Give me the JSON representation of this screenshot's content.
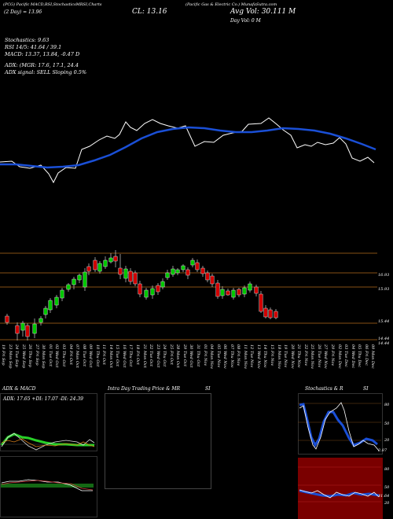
{
  "header": {
    "line1_left": "(PCG) Pacific MACD,RSI,StochasticsMRSI,Charts",
    "line1_right": "(Pacific Gas & Electric Co.) MunafaSutra.com",
    "day": "(2 Day) = 13.96",
    "cl": "CL: 13.16",
    "avg_vol": "Avg Vol: 30.111 M",
    "day_vol": "Day Vol: 0   M"
  },
  "indicators": {
    "stochastics": "Stochastics: 9.63",
    "rsi": "RSI 14/5: 41.64 / 39.1",
    "macd": "MACD: 13.37, 13.84, -0.47 D",
    "adx": "ADX:                                   (MGR: 17.6, 17.1, 24.4",
    "adx_signal": "ADX signal: SELL Sloping 0.5%"
  },
  "price_labels": [
    "16.93",
    "15.93",
    "15.44",
    "14.44",
    "14.44"
  ],
  "date_labels": [
    "19 Fri Sep",
    "23 Mon Sep",
    "24 Tue Sep",
    "25 Wed Sep",
    "26 Thu Sep",
    "27 Fri Sep",
    "30 Mon Sep",
    "01 Tue Oct",
    "02 Wed Oct",
    "03 Thu Oct",
    "04 Fri Oct",
    "07 Mon Oct",
    "08 Tue Oct",
    "09 Wed Oct",
    "10 Thu Oct",
    "11 Fri Oct",
    "14 Mon Oct",
    "15 Tue Oct",
    "16 Wed Oct",
    "17 Thu Oct",
    "18 Fri Oct",
    "21 Mon Oct",
    "22 Tue Oct",
    "23 Wed Oct",
    "24 Thu Oct",
    "25 Fri Oct",
    "28 Mon Oct",
    "29 Tue Oct",
    "30 Wed Oct",
    "31 Thu Oct",
    "01 Fri Nov",
    "04 Mon Nov",
    "05 Tue Nov",
    "06 Wed Nov",
    "07 Thu Nov",
    "08 Fri Nov",
    "11 Mon Nov",
    "12 Tue Nov",
    "13 Wed Nov",
    "14 Thu Nov",
    "15 Fri Nov",
    "18 Mon Nov",
    "19 Tue Nov",
    "20 Wed Nov",
    "21 Thu Nov",
    "22 Fri Nov",
    "25 Mon Nov",
    "26 Tue Nov",
    "27 Wed Nov",
    "29 Fri Nov",
    "02 Mon Dec",
    "03 Tue Dec",
    "04 Wed Dec",
    "05 Thu Dec",
    "06 Fri Dec",
    "09 Mon Dec"
  ],
  "panels": {
    "adx_macd_title": "ADX  & MACD",
    "adx_readout": "ADX: 17.65  +DI: 17.07  -DI: 24.39",
    "intraday_title": "Intra Day Trading Price  & MR",
    "intraday_si": "SI",
    "stoch_title": "Stochastics & R",
    "stoch_si": "SI"
  },
  "stoch_axis": [
    "80",
    "50",
    "20",
    "2.87"
  ],
  "rsi_axis": [
    "80",
    "50",
    "20",
    "41.64"
  ],
  "colors": {
    "background": "#000000",
    "ema": "#1a4fd6",
    "bull": "#00c800",
    "bear": "#d00000",
    "grid": "#b36a1a",
    "rsi_panel": "#7a0000",
    "stoch_blue": "#1a4fd6"
  }
}
